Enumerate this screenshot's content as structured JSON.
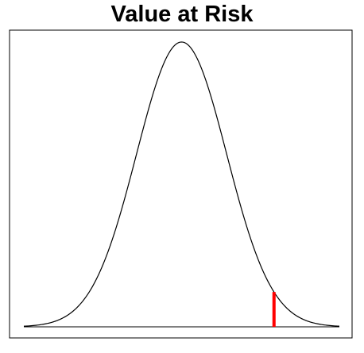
{
  "chart_data": {
    "type": "line",
    "title": "Value at Risk",
    "xlabel": "",
    "ylabel": "",
    "axes_visible": false,
    "grid": false,
    "series": [
      {
        "x_range": [
          -3.5,
          3.5
        ],
        "distribution": "normal",
        "mean": 0,
        "sd": 1,
        "color": "#000000"
      }
    ],
    "marker": {
      "x": 2.05,
      "ymin": 0,
      "ymax_density": 0.0488,
      "color": "#ff0000"
    },
    "xlim": [
      -3.5,
      3.5
    ],
    "ylim": [
      0,
      0.4
    ]
  }
}
